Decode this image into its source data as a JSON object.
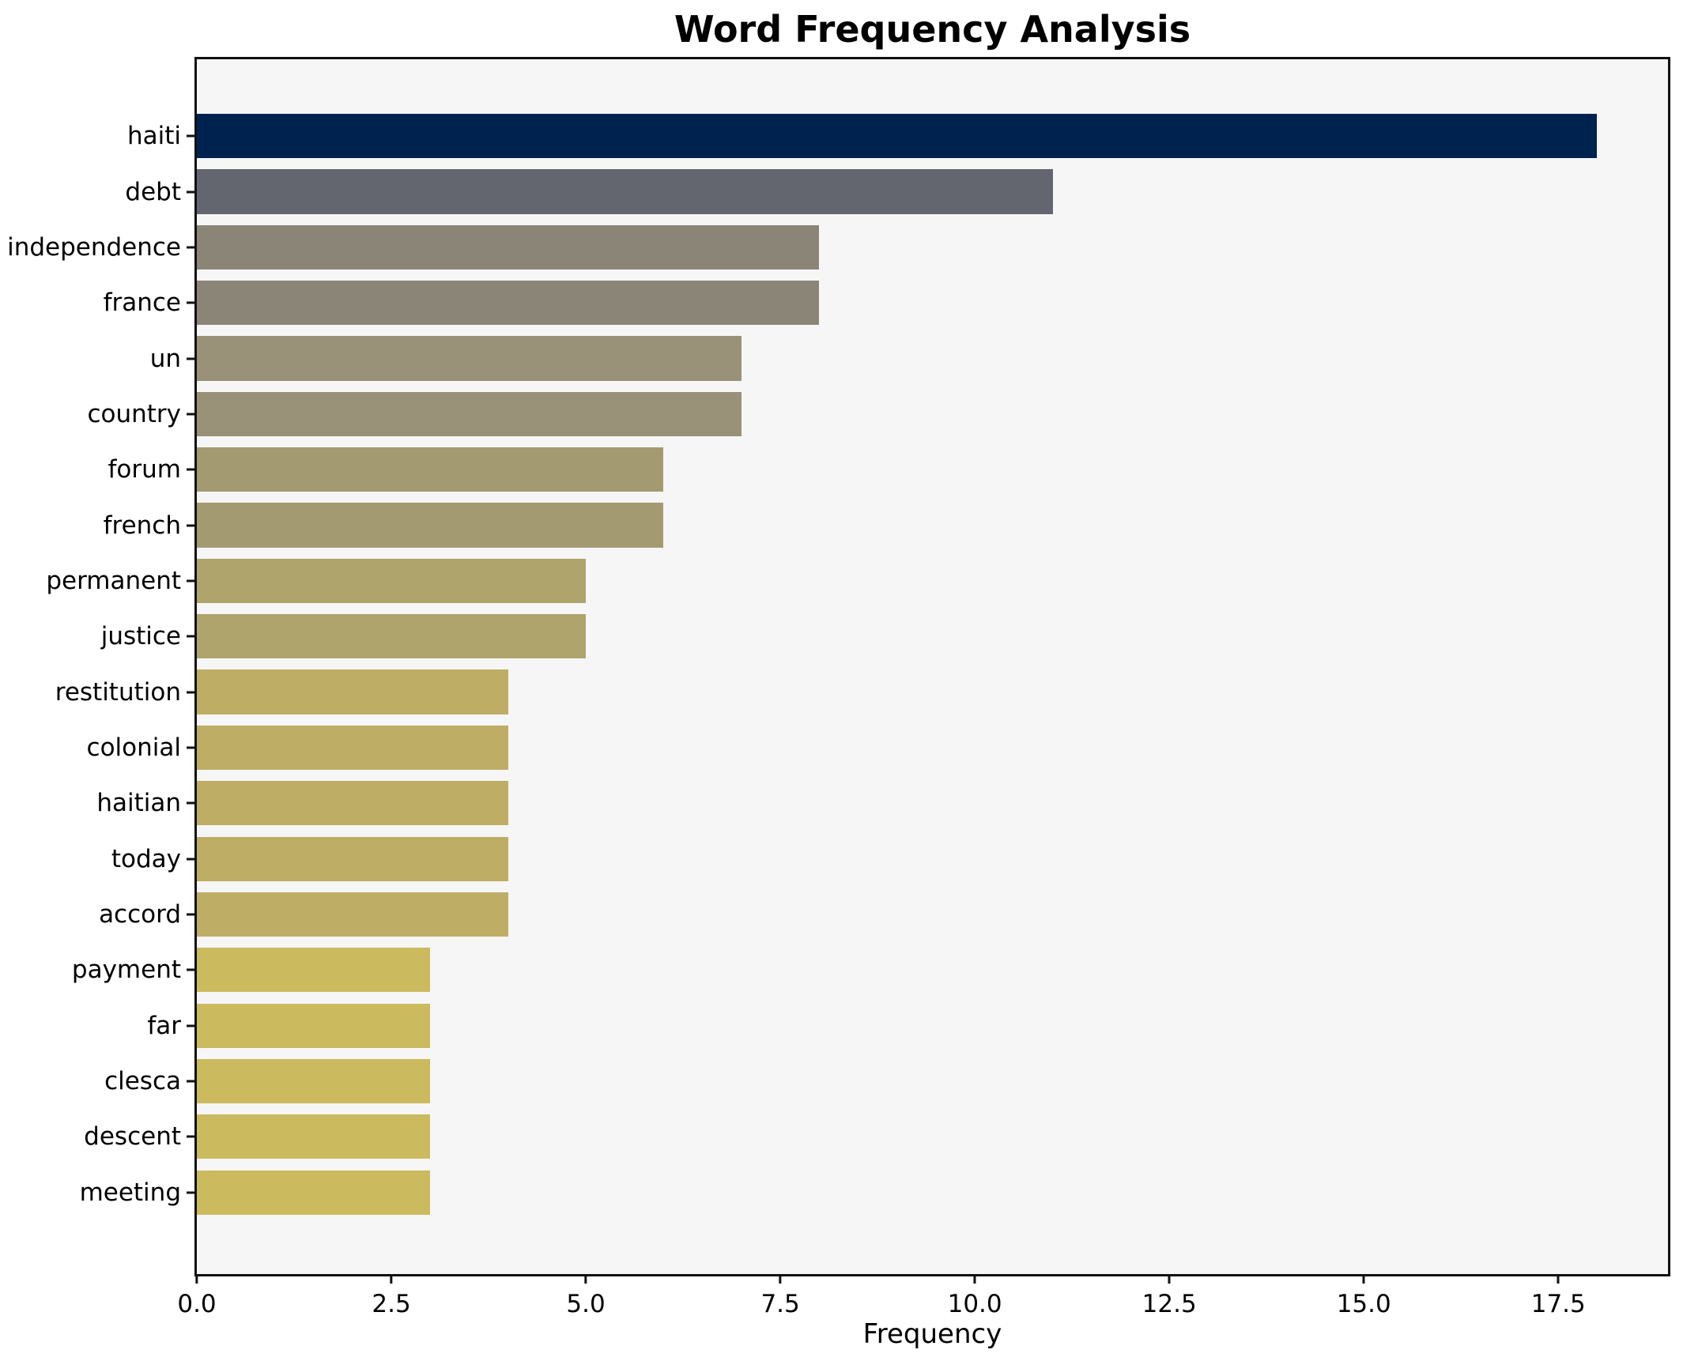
{
  "chart_data": {
    "type": "bar",
    "orientation": "horizontal",
    "title": "Word Frequency Analysis",
    "xlabel": "Frequency",
    "ylabel": "",
    "xlim": [
      0,
      18.91
    ],
    "x_ticks": [
      0.0,
      2.5,
      5.0,
      7.5,
      10.0,
      12.5,
      15.0,
      17.5
    ],
    "grid": false,
    "legend": null,
    "categories": [
      "haiti",
      "debt",
      "independence",
      "france",
      "un",
      "country",
      "forum",
      "french",
      "permanent",
      "justice",
      "restitution",
      "colonial",
      "haitian",
      "today",
      "accord",
      "payment",
      "far",
      "clesca",
      "descent",
      "meeting"
    ],
    "values": [
      18,
      11,
      8,
      8,
      7,
      7,
      6,
      6,
      5,
      5,
      4,
      4,
      4,
      4,
      4,
      3,
      3,
      3,
      3,
      3
    ],
    "bar_colors": [
      "#00224E",
      "#64666F",
      "#8A8577",
      "#8A8577",
      "#999178",
      "#999178",
      "#A39A71",
      "#A39A71",
      "#AFA46C",
      "#AFA46C",
      "#BDAD65",
      "#BDAD65",
      "#BDAD65",
      "#BDAD65",
      "#BDAD65",
      "#CCBA5E",
      "#CCBA5E",
      "#CCBA5E",
      "#CCBA5E",
      "#CCBA5E"
    ]
  },
  "style_colors": {
    "plot_background": "#f6f6f6",
    "figure_background": "#ffffff",
    "spine": "#111111",
    "text": "#000000"
  }
}
